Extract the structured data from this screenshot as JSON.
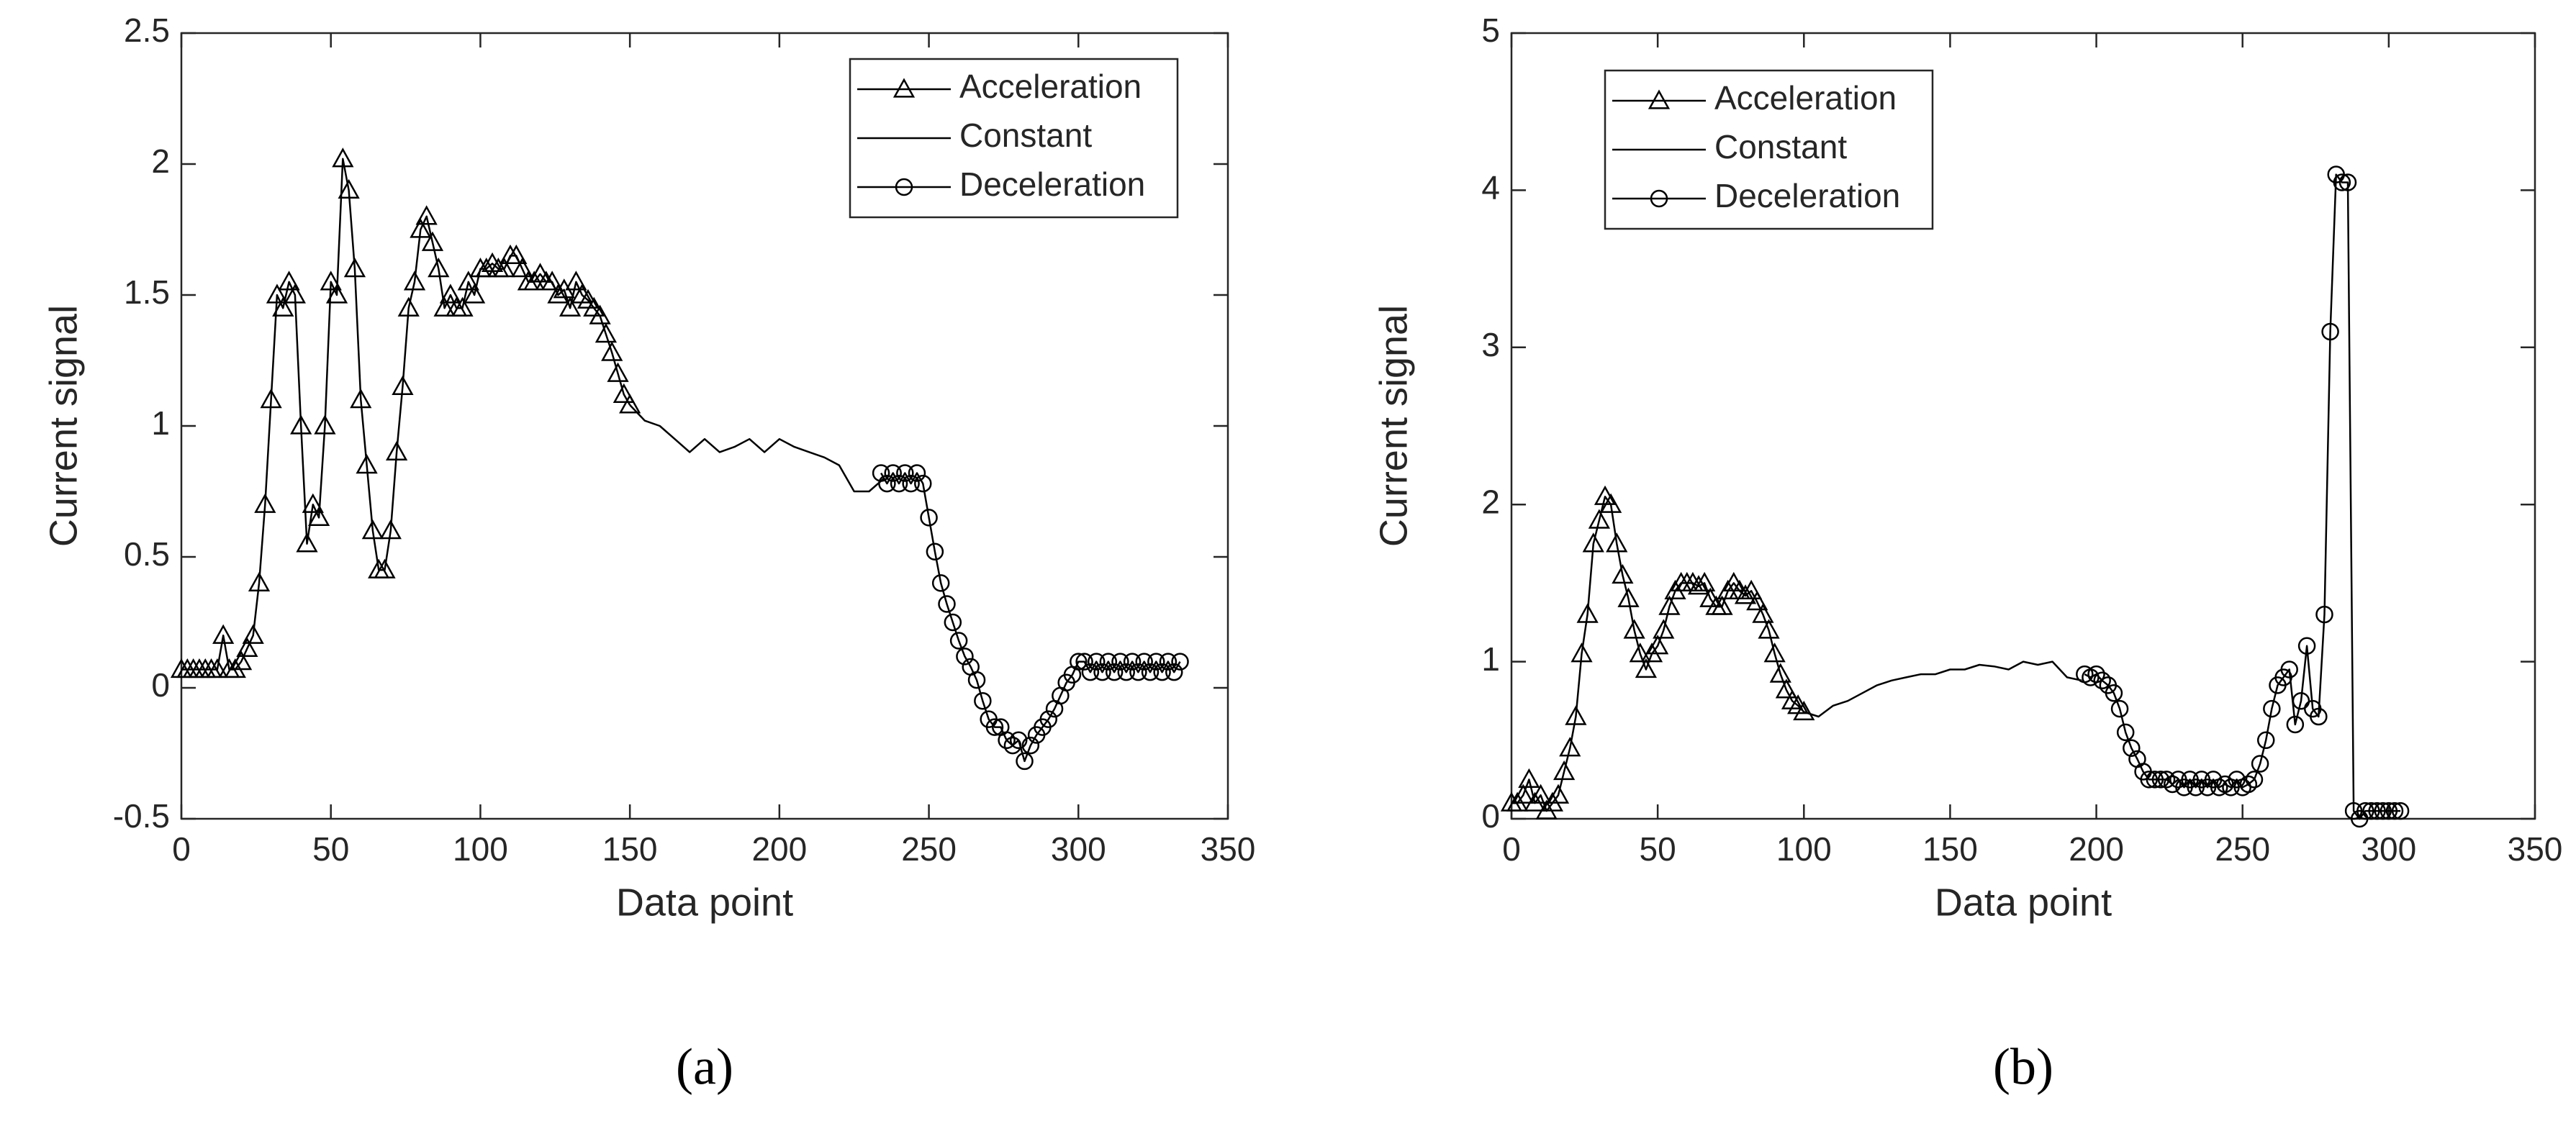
{
  "chart_data": [
    {
      "type": "line",
      "caption": "(a)",
      "xlabel": "Data point",
      "ylabel": "Current signal",
      "xlim": [
        0,
        350
      ],
      "ylim": [
        -0.5,
        2.5
      ],
      "xticks": [
        0,
        50,
        100,
        150,
        200,
        250,
        300,
        350
      ],
      "yticks": [
        -0.5,
        0,
        0.5,
        1,
        1.5,
        2,
        2.5
      ],
      "legend": "upper right",
      "series": [
        {
          "name": "Acceleration",
          "marker": "triangle",
          "color": "#000000",
          "x": [
            0,
            2,
            4,
            6,
            8,
            10,
            12,
            14,
            16,
            18,
            20,
            22,
            24,
            26,
            28,
            30,
            32,
            34,
            36,
            38,
            40,
            42,
            44,
            46,
            48,
            50,
            52,
            54,
            56,
            58,
            60,
            62,
            64,
            66,
            68,
            70,
            72,
            74,
            76,
            78,
            80,
            82,
            84,
            86,
            88,
            90,
            92,
            94,
            96,
            98,
            100,
            102,
            104,
            106,
            108,
            110,
            112,
            114,
            116,
            118,
            120,
            122,
            124,
            126,
            128,
            130,
            132,
            134,
            136,
            138,
            140,
            142,
            144,
            146,
            148,
            150
          ],
          "values": [
            0.07,
            0.07,
            0.07,
            0.07,
            0.07,
            0.07,
            0.07,
            0.2,
            0.07,
            0.07,
            0.1,
            0.15,
            0.2,
            0.4,
            0.7,
            1.1,
            1.5,
            1.45,
            1.55,
            1.5,
            1.0,
            0.55,
            0.7,
            0.65,
            1.0,
            1.55,
            1.5,
            2.02,
            1.9,
            1.6,
            1.1,
            0.85,
            0.6,
            0.45,
            0.45,
            0.6,
            0.9,
            1.15,
            1.45,
            1.55,
            1.75,
            1.8,
            1.7,
            1.6,
            1.45,
            1.5,
            1.45,
            1.45,
            1.55,
            1.5,
            1.6,
            1.6,
            1.62,
            1.6,
            1.6,
            1.65,
            1.65,
            1.6,
            1.55,
            1.55,
            1.58,
            1.55,
            1.55,
            1.5,
            1.52,
            1.45,
            1.55,
            1.5,
            1.48,
            1.45,
            1.42,
            1.35,
            1.28,
            1.2,
            1.12,
            1.08
          ]
        },
        {
          "name": "Constant",
          "marker": "none",
          "color": "#000000",
          "x": [
            150,
            155,
            160,
            165,
            170,
            175,
            180,
            185,
            190,
            195,
            200,
            205,
            210,
            215,
            220,
            225,
            230,
            235
          ],
          "values": [
            1.08,
            1.02,
            1.0,
            0.95,
            0.9,
            0.95,
            0.9,
            0.92,
            0.95,
            0.9,
            0.95,
            0.92,
            0.9,
            0.88,
            0.85,
            0.75,
            0.75,
            0.8
          ]
        },
        {
          "name": "Deceleration",
          "marker": "circle",
          "color": "#000000",
          "x": [
            234,
            236,
            238,
            240,
            242,
            244,
            246,
            248,
            250,
            252,
            254,
            256,
            258,
            260,
            262,
            264,
            266,
            268,
            270,
            272,
            274,
            276,
            278,
            280,
            282,
            284,
            286,
            288,
            290,
            292,
            294,
            296,
            298,
            300,
            302,
            304,
            306,
            308,
            310,
            312,
            314,
            316,
            318,
            320,
            322,
            324,
            326,
            328,
            330,
            332,
            334
          ],
          "values": [
            0.82,
            0.78,
            0.82,
            0.78,
            0.82,
            0.78,
            0.82,
            0.78,
            0.65,
            0.52,
            0.4,
            0.32,
            0.25,
            0.18,
            0.12,
            0.08,
            0.03,
            -0.05,
            -0.12,
            -0.15,
            -0.15,
            -0.2,
            -0.22,
            -0.2,
            -0.28,
            -0.22,
            -0.18,
            -0.15,
            -0.12,
            -0.08,
            -0.03,
            0.02,
            0.05,
            0.1,
            0.1,
            0.06,
            0.1,
            0.06,
            0.1,
            0.06,
            0.1,
            0.06,
            0.1,
            0.06,
            0.1,
            0.06,
            0.1,
            0.06,
            0.1,
            0.06,
            0.1
          ]
        }
      ]
    },
    {
      "type": "line",
      "caption": "(b)",
      "xlabel": "Data point",
      "ylabel": "Current signal",
      "xlim": [
        0,
        350
      ],
      "ylim": [
        0,
        5
      ],
      "xticks": [
        0,
        50,
        100,
        150,
        200,
        250,
        300,
        350
      ],
      "yticks": [
        0,
        1,
        2,
        3,
        4,
        5
      ],
      "legend": "upper left",
      "series": [
        {
          "name": "Acceleration",
          "marker": "triangle",
          "color": "#000000",
          "x": [
            0,
            2,
            4,
            6,
            8,
            10,
            12,
            14,
            16,
            18,
            20,
            22,
            24,
            26,
            28,
            30,
            32,
            34,
            36,
            38,
            40,
            42,
            44,
            46,
            48,
            50,
            52,
            54,
            56,
            58,
            60,
            62,
            64,
            66,
            68,
            70,
            72,
            74,
            76,
            78,
            80,
            82,
            84,
            86,
            88,
            90,
            92,
            94,
            96,
            98,
            100
          ],
          "values": [
            0.1,
            0.1,
            0.15,
            0.25,
            0.1,
            0.15,
            0.05,
            0.1,
            0.15,
            0.3,
            0.45,
            0.65,
            1.05,
            1.3,
            1.75,
            1.9,
            2.05,
            2.0,
            1.75,
            1.55,
            1.4,
            1.2,
            1.05,
            0.95,
            1.05,
            1.1,
            1.2,
            1.35,
            1.45,
            1.5,
            1.5,
            1.5,
            1.48,
            1.5,
            1.4,
            1.35,
            1.35,
            1.45,
            1.5,
            1.45,
            1.42,
            1.45,
            1.38,
            1.3,
            1.2,
            1.05,
            0.92,
            0.82,
            0.75,
            0.72,
            0.68
          ]
        },
        {
          "name": "Constant",
          "marker": "none",
          "color": "#000000",
          "x": [
            100,
            105,
            110,
            115,
            120,
            125,
            130,
            135,
            140,
            145,
            150,
            155,
            160,
            165,
            170,
            175,
            180,
            185,
            190,
            195
          ],
          "values": [
            0.68,
            0.65,
            0.72,
            0.75,
            0.8,
            0.85,
            0.88,
            0.9,
            0.92,
            0.92,
            0.95,
            0.95,
            0.98,
            0.97,
            0.95,
            1.0,
            0.98,
            1.0,
            0.9,
            0.88
          ]
        },
        {
          "name": "Deceleration",
          "marker": "circle",
          "color": "#000000",
          "x": [
            196,
            198,
            200,
            202,
            204,
            206,
            208,
            210,
            212,
            214,
            216,
            218,
            220,
            222,
            224,
            226,
            228,
            230,
            232,
            234,
            236,
            238,
            240,
            242,
            244,
            246,
            248,
            250,
            252,
            254,
            256,
            258,
            260,
            262,
            264,
            266,
            268,
            270,
            272,
            274,
            276,
            278,
            280,
            282,
            284,
            286,
            288,
            290,
            292,
            294,
            296,
            298,
            300,
            302,
            304
          ],
          "values": [
            0.92,
            0.9,
            0.92,
            0.88,
            0.85,
            0.8,
            0.7,
            0.55,
            0.45,
            0.38,
            0.3,
            0.25,
            0.25,
            0.25,
            0.25,
            0.22,
            0.25,
            0.2,
            0.25,
            0.2,
            0.25,
            0.2,
            0.25,
            0.2,
            0.22,
            0.2,
            0.25,
            0.2,
            0.22,
            0.25,
            0.35,
            0.5,
            0.7,
            0.85,
            0.9,
            0.95,
            0.6,
            0.75,
            1.1,
            0.7,
            0.65,
            1.3,
            3.1,
            4.1,
            4.05,
            4.05,
            0.05,
            0.0,
            0.05,
            0.05,
            0.05,
            0.05,
            0.05,
            0.05,
            0.05
          ]
        }
      ]
    }
  ]
}
